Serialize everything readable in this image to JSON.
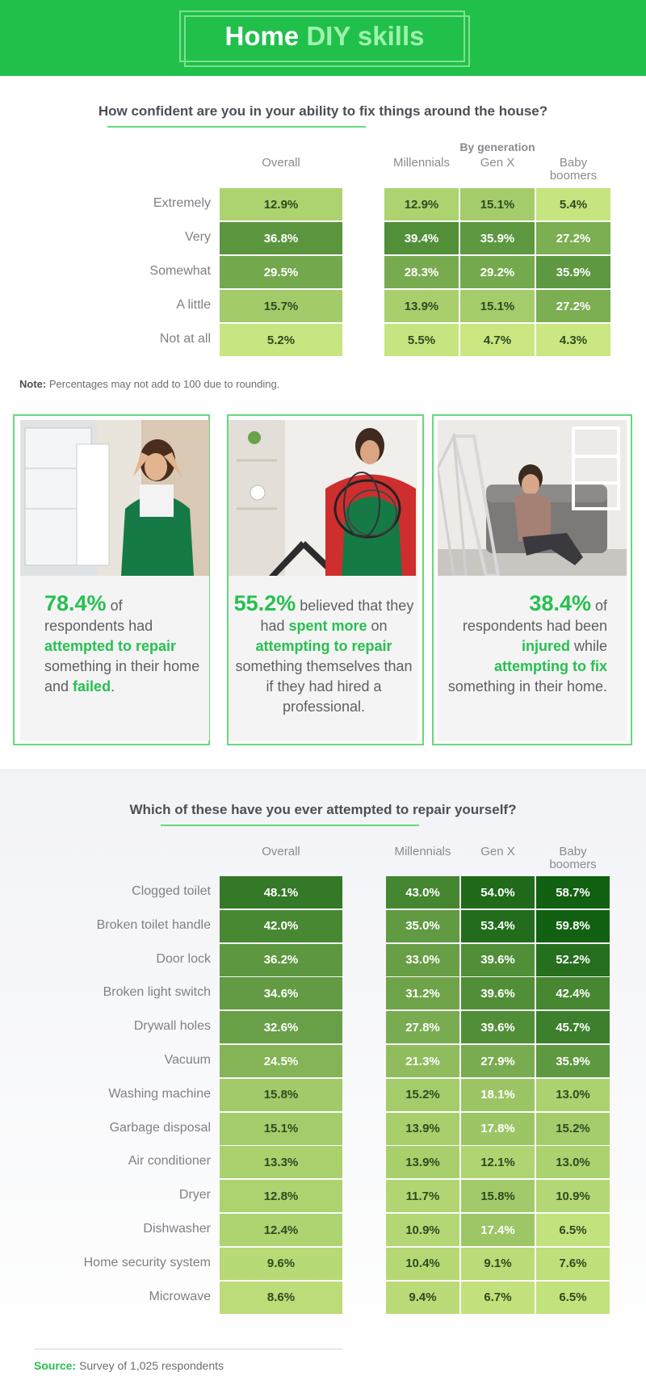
{
  "header": {
    "title_part1": "Home",
    "title_part2": "DIY skills",
    "bg_color": "#20c04a"
  },
  "chart_data": [
    {
      "type": "table",
      "title": "How confident are you in your ability to fix things around the house?",
      "group_label": "By generation",
      "columns": [
        "Overall",
        "Millennials",
        "Gen X",
        "Baby boomers"
      ],
      "rows": [
        {
          "label": "Extremely",
          "values": [
            "12.9%",
            "12.9%",
            "15.1%",
            "5.4%"
          ]
        },
        {
          "label": "Very",
          "values": [
            "36.8%",
            "39.4%",
            "35.9%",
            "27.2%"
          ]
        },
        {
          "label": "Somewhat",
          "values": [
            "29.5%",
            "28.3%",
            "29.2%",
            "35.9%"
          ]
        },
        {
          "label": "A little",
          "values": [
            "15.7%",
            "13.9%",
            "15.1%",
            "27.2%"
          ]
        },
        {
          "label": "Not at all",
          "values": [
            "5.2%",
            "5.5%",
            "4.7%",
            "4.3%"
          ]
        }
      ]
    },
    {
      "type": "table",
      "title": "Which of these have you ever attempted to repair yourself?",
      "columns": [
        "Overall",
        "Millennials",
        "Gen X",
        "Baby boomers"
      ],
      "rows": [
        {
          "label": "Clogged toilet",
          "values": [
            "48.1%",
            "43.0%",
            "54.0%",
            "58.7%"
          ]
        },
        {
          "label": "Broken toilet handle",
          "values": [
            "42.0%",
            "35.0%",
            "53.4%",
            "59.8%"
          ]
        },
        {
          "label": "Door lock",
          "values": [
            "36.2%",
            "33.0%",
            "39.6%",
            "52.2%"
          ]
        },
        {
          "label": "Broken light switch",
          "values": [
            "34.6%",
            "31.2%",
            "39.6%",
            "42.4%"
          ]
        },
        {
          "label": "Drywall holes",
          "values": [
            "32.6%",
            "27.8%",
            "39.6%",
            "45.7%"
          ]
        },
        {
          "label": "Vacuum",
          "values": [
            "24.5%",
            "21.3%",
            "27.9%",
            "35.9%"
          ]
        },
        {
          "label": "Washing machine",
          "values": [
            "15.8%",
            "15.2%",
            "18.1%",
            "13.0%"
          ]
        },
        {
          "label": "Garbage disposal",
          "values": [
            "15.1%",
            "13.9%",
            "17.8%",
            "15.2%"
          ]
        },
        {
          "label": "Air conditioner",
          "values": [
            "13.3%",
            "13.9%",
            "12.1%",
            "13.0%"
          ]
        },
        {
          "label": "Dryer",
          "values": [
            "12.8%",
            "11.7%",
            "15.8%",
            "10.9%"
          ]
        },
        {
          "label": "Dishwasher",
          "values": [
            "12.4%",
            "10.9%",
            "17.4%",
            "6.5%"
          ]
        },
        {
          "label": "Home security system",
          "values": [
            "9.6%",
            "10.4%",
            "9.1%",
            "7.6%"
          ]
        },
        {
          "label": "Microwave",
          "values": [
            "8.6%",
            "9.4%",
            "6.7%",
            "6.5%"
          ]
        }
      ]
    }
  ],
  "note": {
    "label": "Note:",
    "text": "Percentages may not add to 100 due to rounding."
  },
  "cards": [
    {
      "segments": [
        {
          "t": "78.4%",
          "s": "big"
        },
        {
          "t": " of respondents had ",
          "s": ""
        },
        {
          "t": "attempted to repair",
          "s": "g"
        },
        {
          "t": " something in their home and ",
          "s": ""
        },
        {
          "t": "failed",
          "s": "g"
        },
        {
          "t": ".",
          "s": ""
        }
      ]
    },
    {
      "segments": [
        {
          "t": "55.2%",
          "s": "big"
        },
        {
          "t": " believed that they had ",
          "s": ""
        },
        {
          "t": "spent more",
          "s": "g"
        },
        {
          "t": " on ",
          "s": ""
        },
        {
          "t": "attempting to repair",
          "s": "g"
        },
        {
          "t": " something themselves than if they had hired a professional.",
          "s": ""
        }
      ]
    },
    {
      "segments": [
        {
          "t": "38.4%",
          "s": "big"
        },
        {
          "t": " of respondents had been ",
          "s": ""
        },
        {
          "t": "injured",
          "s": "g"
        },
        {
          "t": " while ",
          "s": ""
        },
        {
          "t": "attempting to fix",
          "s": "g"
        },
        {
          "t": " something in their home.",
          "s": ""
        }
      ]
    }
  ],
  "source": {
    "label": "Source:",
    "text": "Survey of 1,025 respondents"
  },
  "accent_color": "#27c050"
}
